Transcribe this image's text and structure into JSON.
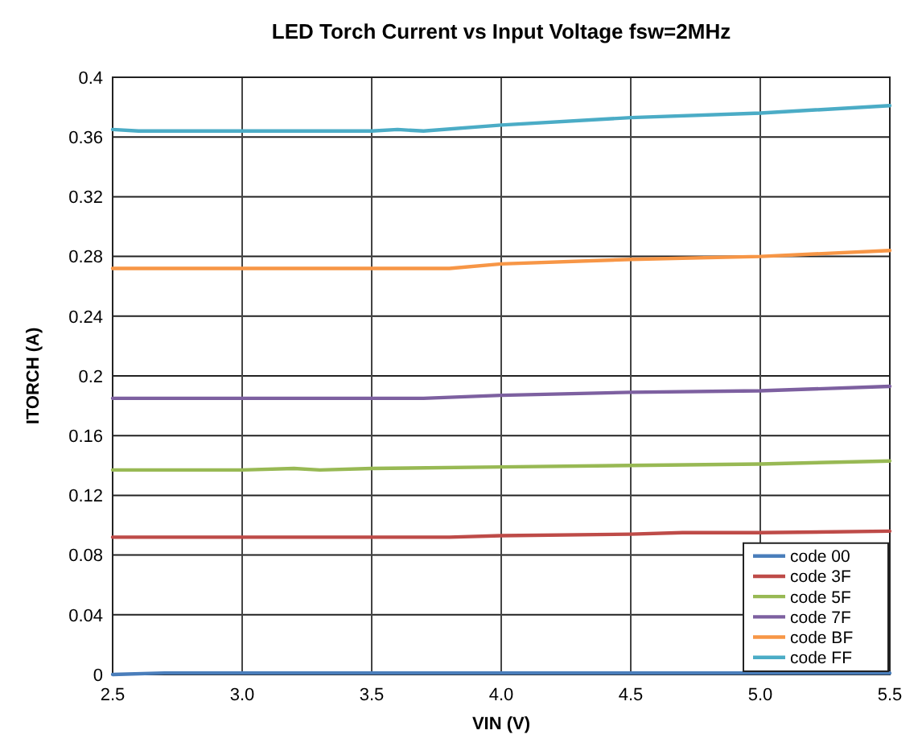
{
  "chart_data": {
    "type": "line",
    "title": "LED Torch Current vs Input Voltage  fsw=2MHz",
    "xlabel": "VIN (V)",
    "ylabel": "ITORCH (A)",
    "xlim": [
      2.5,
      5.5
    ],
    "xticks": [
      2.5,
      {
        "value": 3,
        "label": "3.0"
      },
      3.5,
      {
        "value": 4,
        "label": "4.0"
      },
      4.5,
      {
        "value": 5,
        "label": "5.0"
      },
      5.5
    ],
    "ylim": [
      0,
      0.4
    ],
    "yticks": [
      0,
      0.04,
      0.08,
      0.12,
      0.16,
      0.2,
      0.24,
      0.28,
      0.32,
      0.36,
      0.4
    ],
    "grid": true,
    "legend": "bottom right",
    "marker": "none",
    "line_style": "solid",
    "series": [
      {
        "name": "code 00",
        "color": "#4a7ebb",
        "x": [
          2.5,
          2.7,
          3.0,
          3.5,
          4.0,
          4.5,
          5.0,
          5.5
        ],
        "values": [
          0.0,
          0.001,
          0.001,
          0.001,
          0.001,
          0.001,
          0.001,
          0.001
        ]
      },
      {
        "name": "code 3F",
        "color": "#be4b48",
        "x": [
          2.5,
          3.0,
          3.5,
          3.8,
          4.0,
          4.5,
          4.7,
          5.0,
          5.5
        ],
        "values": [
          0.092,
          0.092,
          0.092,
          0.092,
          0.093,
          0.094,
          0.095,
          0.095,
          0.096
        ]
      },
      {
        "name": "code 5F",
        "color": "#98b954",
        "x": [
          2.5,
          3.0,
          3.2,
          3.3,
          3.5,
          4.0,
          4.5,
          5.0,
          5.5
        ],
        "values": [
          0.137,
          0.137,
          0.138,
          0.137,
          0.138,
          0.139,
          0.14,
          0.141,
          0.143
        ]
      },
      {
        "name": "code 7F",
        "color": "#7d60a0",
        "x": [
          2.5,
          3.0,
          3.5,
          3.7,
          4.0,
          4.5,
          5.0,
          5.5
        ],
        "values": [
          0.185,
          0.185,
          0.185,
          0.185,
          0.187,
          0.189,
          0.19,
          0.193
        ]
      },
      {
        "name": "code BF",
        "color": "#f79646",
        "x": [
          2.5,
          3.0,
          3.5,
          3.8,
          4.0,
          4.5,
          5.0,
          5.5
        ],
        "values": [
          0.272,
          0.272,
          0.272,
          0.272,
          0.275,
          0.278,
          0.28,
          0.284
        ]
      },
      {
        "name": "code FF",
        "color": "#4bacc6",
        "x": [
          2.5,
          2.6,
          3.0,
          3.5,
          3.6,
          3.7,
          4.0,
          4.5,
          5.0,
          5.5
        ],
        "values": [
          0.365,
          0.364,
          0.364,
          0.364,
          0.365,
          0.364,
          0.368,
          0.373,
          0.376,
          0.381
        ]
      }
    ]
  }
}
